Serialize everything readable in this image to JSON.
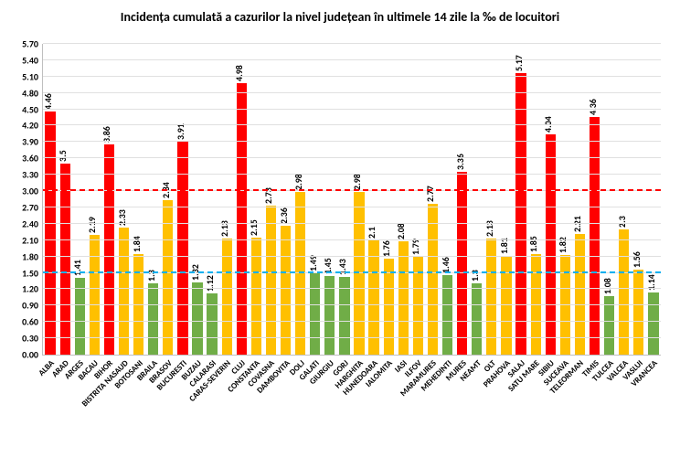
{
  "chart": {
    "type": "bar",
    "title": "Incidența cumulată a cazurilor la nivel județean în ultimele 14 zile la ‰ de locuitori",
    "title_fontsize": 14,
    "background_color": "#ffffff",
    "grid_color": "#e0e0e0",
    "axis_color": "#bfbfbf",
    "ylim": [
      0,
      5.7
    ],
    "ytick_step": 0.3,
    "ytick_fontsize": 10,
    "yticks": [
      "0.00",
      "0.30",
      "0.60",
      "0.90",
      "1.20",
      "1.50",
      "1.80",
      "2.10",
      "2.40",
      "2.70",
      "3.00",
      "3.30",
      "3.60",
      "3.90",
      "4.20",
      "4.50",
      "4.80",
      "5.10",
      "5.40",
      "5.70"
    ],
    "bar_width": 0.7,
    "value_label_fontsize": 10,
    "xlabel_fontsize": 9,
    "reference_lines": [
      {
        "value": 1.5,
        "color": "#00b0f0",
        "dash": "6,4",
        "width": 2
      },
      {
        "value": 3.0,
        "color": "#ff0000",
        "dash": "6,4",
        "width": 2
      }
    ],
    "color_rules": {
      "low_max": 1.5,
      "high_min": 3.0,
      "low_color": "#70ad47",
      "mid_color": "#ffc000",
      "high_color": "#ff0000"
    },
    "categories": [
      "ALBA",
      "ARAD",
      "ARGES",
      "BACAU",
      "BIHOR",
      "BISTRITA NASAUD",
      "BOTOSANI",
      "BRAILA",
      "BRASOV",
      "BUCURESTI",
      "BUZAU",
      "CALARASI",
      "CARAS-SEVERIN",
      "CLUJ",
      "CONSTANTA",
      "COVASNA",
      "DAMBOVITA",
      "DOLJ",
      "GALATI",
      "GIURGIU",
      "GORJ",
      "HARGHITA",
      "HUNEDOARA",
      "IALOMITA",
      "IASI",
      "ILFOV",
      "MARAMURES",
      "MEHEDINTI",
      "MURES",
      "NEAMT",
      "OLT",
      "PRAHOVA",
      "SALAJ",
      "SATU MARE",
      "SIBIU",
      "SUCEAVA",
      "TELEORMAN",
      "TIMIS",
      "TULCEA",
      "VALCEA",
      "VASLUI",
      "VRANCEA"
    ],
    "values": [
      4.46,
      3.5,
      1.41,
      2.19,
      3.86,
      2.33,
      1.84,
      1.3,
      2.84,
      3.91,
      1.32,
      1.12,
      2.13,
      4.98,
      2.15,
      2.73,
      2.36,
      2.98,
      1.49,
      1.45,
      1.43,
      2.98,
      2.1,
      1.76,
      2.08,
      1.79,
      2.77,
      1.46,
      3.36,
      1.3,
      2.13,
      1.81,
      5.17,
      1.85,
      4.04,
      1.82,
      2.21,
      4.36,
      1.08,
      2.3,
      1.56,
      1.14
    ],
    "value_labels": [
      "4.46",
      "3.5",
      "1.41",
      "2.19",
      "3.86",
      "2.33",
      "1.84",
      "1.3",
      "2.84",
      "3.91",
      "1.32",
      "1.12",
      "2.13",
      "4.98",
      "2.15",
      "2.73",
      "2.36",
      "2.98",
      "1.49",
      "1.45",
      "1.43",
      "2.98",
      "2.1",
      "1.76",
      "2.08",
      "1.79",
      "2.77",
      "1.46",
      "3.36",
      "1.3",
      "2.13",
      "1.81",
      "5.17",
      "1.85",
      "4.04",
      "1.82",
      "2.21",
      "4.36",
      "1.08",
      "2.3",
      "1.56",
      "1.14"
    ]
  }
}
